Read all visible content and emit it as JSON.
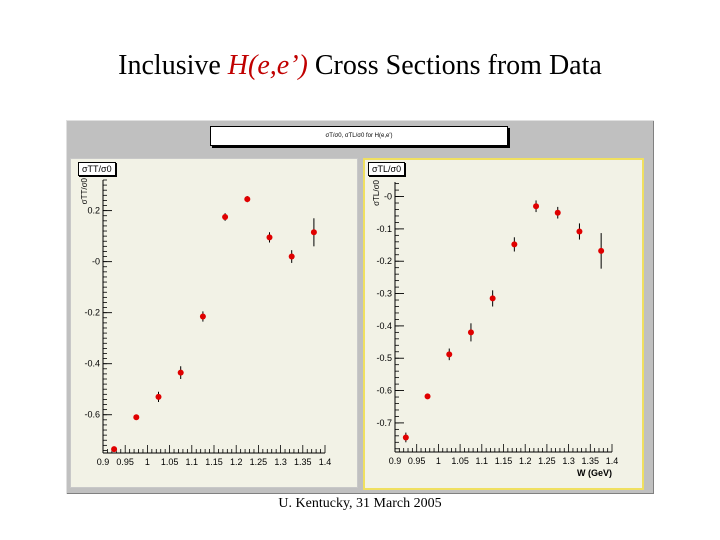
{
  "slide": {
    "title_prefix": "Inclusive ",
    "title_emph": "H(e,e’)",
    "title_suffix": " Cross Sections from Data",
    "canvas_label": "σT/σ0, σTL/σ0 for H(e,e')",
    "footer": "U. Kentucky, 31 March 2005"
  },
  "chart_data": [
    {
      "type": "scatter",
      "title": "σTT/σ0",
      "ylabel": "σTT/σ0",
      "xlabel": "",
      "xlim": [
        0.9,
        1.4
      ],
      "ylim": [
        -0.75,
        0.32
      ],
      "xticks": [
        "0.9",
        "0.95",
        "1",
        "1.05",
        "1.1",
        "1.15",
        "1.2",
        "1.25",
        "1.3",
        "1.35",
        "1.4"
      ],
      "yticks": [
        "-0.6",
        "-0.4",
        "-0.2",
        "-0",
        "0.2"
      ],
      "points": [
        {
          "x": 0.925,
          "y": -0.735,
          "err": 0.005
        },
        {
          "x": 0.975,
          "y": -0.61,
          "err": 0.01
        },
        {
          "x": 1.025,
          "y": -0.53,
          "err": 0.02
        },
        {
          "x": 1.075,
          "y": -0.435,
          "err": 0.025
        },
        {
          "x": 1.125,
          "y": -0.215,
          "err": 0.02
        },
        {
          "x": 1.175,
          "y": 0.175,
          "err": 0.015
        },
        {
          "x": 1.225,
          "y": 0.245,
          "err": 0.012
        },
        {
          "x": 1.275,
          "y": 0.095,
          "err": 0.02
        },
        {
          "x": 1.325,
          "y": 0.02,
          "err": 0.025
        },
        {
          "x": 1.375,
          "y": 0.115,
          "err": 0.055
        }
      ]
    },
    {
      "type": "scatter",
      "title": "σTL/σ0",
      "ylabel": "σTL/σ0",
      "xlabel": "W (GeV)",
      "xlim": [
        0.9,
        1.4
      ],
      "ylim": [
        -0.79,
        0.045
      ],
      "xticks": [
        "0.9",
        "0.95",
        "1",
        "1.05",
        "1.1",
        "1.15",
        "1.2",
        "1.25",
        "1.3",
        "1.35",
        "1.4"
      ],
      "yticks": [
        "-0.7",
        "-0.6",
        "-0.5",
        "-0.4",
        "-0.3",
        "-0.2",
        "-0.1",
        "-0"
      ],
      "points": [
        {
          "x": 0.925,
          "y": -0.745,
          "err": 0.015
        },
        {
          "x": 0.975,
          "y": -0.618,
          "err": 0.008
        },
        {
          "x": 1.025,
          "y": -0.488,
          "err": 0.018
        },
        {
          "x": 1.075,
          "y": -0.42,
          "err": 0.028
        },
        {
          "x": 1.125,
          "y": -0.315,
          "err": 0.025
        },
        {
          "x": 1.175,
          "y": -0.148,
          "err": 0.022
        },
        {
          "x": 1.225,
          "y": -0.03,
          "err": 0.018
        },
        {
          "x": 1.275,
          "y": -0.05,
          "err": 0.018
        },
        {
          "x": 1.325,
          "y": -0.108,
          "err": 0.025
        },
        {
          "x": 1.375,
          "y": -0.168,
          "err": 0.055
        }
      ]
    }
  ]
}
